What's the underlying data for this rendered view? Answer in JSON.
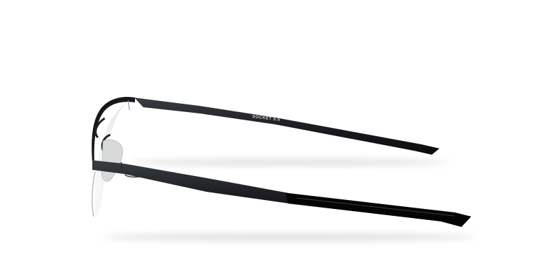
{
  "image": {
    "temple_text": "SOCKET 5.5"
  }
}
